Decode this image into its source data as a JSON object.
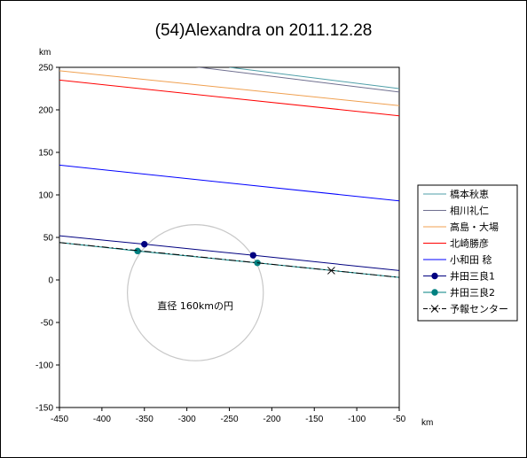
{
  "chart_data": {
    "type": "line",
    "title": "(54)Alexandra on 2011.12.28",
    "xlabel": "km",
    "ylabel": "km",
    "xlim": [
      -450,
      -50
    ],
    "ylim": [
      -150,
      250
    ],
    "xticks": [
      -450,
      -400,
      -350,
      -300,
      -250,
      -200,
      -150,
      -100,
      -50
    ],
    "yticks": [
      -150,
      -100,
      -50,
      0,
      50,
      100,
      150,
      200,
      250
    ],
    "grid": false,
    "legend_position": "right",
    "series": [
      {
        "name": "橋本秋恵",
        "color": "#4f9fa8",
        "marker": "none",
        "dash": "solid",
        "x": [
          -250,
          -50
        ],
        "y": [
          250,
          225
        ]
      },
      {
        "name": "相川礼仁",
        "color": "#6f6f8f",
        "marker": "none",
        "dash": "solid",
        "x": [
          -310,
          -50
        ],
        "y": [
          253,
          221
        ]
      },
      {
        "name": "高島・大場",
        "color": "#f0a050",
        "marker": "none",
        "dash": "solid",
        "x": [
          -450,
          -50
        ],
        "y": [
          246,
          205
        ]
      },
      {
        "name": "北崎勝彦",
        "color": "#ff0000",
        "marker": "none",
        "dash": "solid",
        "x": [
          -450,
          -50
        ],
        "y": [
          235,
          193
        ]
      },
      {
        "name": "小和田 稔",
        "color": "#0000ff",
        "marker": "none",
        "dash": "solid",
        "x": [
          -450,
          -50
        ],
        "y": [
          135,
          93
        ]
      },
      {
        "name": "井田三良1",
        "color": "#000080",
        "marker": "circle",
        "dash": "solid",
        "x": [
          -450,
          -350,
          -222,
          -50
        ],
        "y": [
          52,
          42,
          29,
          11
        ],
        "marker_points": [
          [
            -350,
            42
          ],
          [
            -222,
            29
          ]
        ]
      },
      {
        "name": "井田三良2",
        "color": "#008080",
        "marker": "circle",
        "dash": "solid",
        "x": [
          -450,
          -358,
          -217,
          -50
        ],
        "y": [
          44,
          34,
          20,
          3
        ],
        "marker_points": [
          [
            -358,
            34
          ],
          [
            -217,
            20
          ]
        ]
      },
      {
        "name": "予報センター",
        "color": "#000000",
        "marker": "x",
        "dash": "dashdot",
        "x": [
          -450,
          -50
        ],
        "y": [
          44,
          3
        ],
        "marker_points": [
          [
            -130,
            11
          ]
        ]
      }
    ],
    "circle": {
      "cx": -290,
      "cy": -15,
      "r": 80,
      "color": "#c8c8c8"
    },
    "annotation": {
      "text": "直径 160kmの円",
      "x": -290,
      "y": -30
    }
  }
}
